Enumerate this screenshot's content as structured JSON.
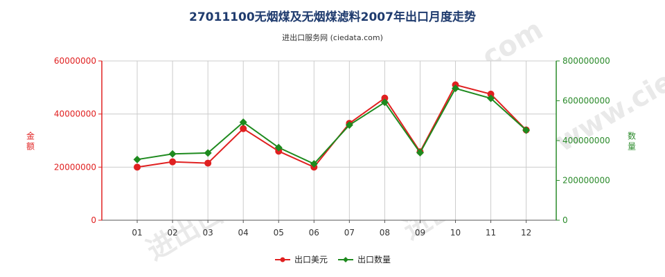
{
  "title": "27011100无烟煤及无烟煤滤料2007年出口月度走势",
  "subtitle": "进出口服务网 (ciedata.com)",
  "watermark": "进出口服务网 www.ciedata.com",
  "chart_data": {
    "type": "line",
    "categories": [
      "01",
      "02",
      "03",
      "04",
      "05",
      "06",
      "07",
      "08",
      "09",
      "10",
      "11",
      "12"
    ],
    "y_left": {
      "label": "金额",
      "ylim": [
        0,
        60000000
      ],
      "ticks": [
        "0",
        "20000000",
        "40000000",
        "60000000"
      ],
      "color": "#e02020"
    },
    "y_right": {
      "label": "数量",
      "ylim": [
        0,
        800000000
      ],
      "ticks": [
        "0",
        "200000000",
        "400000000",
        "600000000",
        "800000000"
      ],
      "color": "#2a8a2a"
    },
    "series": [
      {
        "name": "出口美元",
        "axis": "left",
        "color": "#e02020",
        "values": [
          20000000,
          22000000,
          21500000,
          34500000,
          26000000,
          20000000,
          36500000,
          46000000,
          25800000,
          51000000,
          47500000,
          34000000
        ]
      },
      {
        "name": "出口数量",
        "axis": "right",
        "color": "#1e8a1e",
        "values": [
          305000000,
          333000000,
          338000000,
          492000000,
          365000000,
          283000000,
          478000000,
          592000000,
          339000000,
          662000000,
          612000000,
          452000000
        ]
      }
    ],
    "grid": true,
    "legend_position": "bottom"
  }
}
